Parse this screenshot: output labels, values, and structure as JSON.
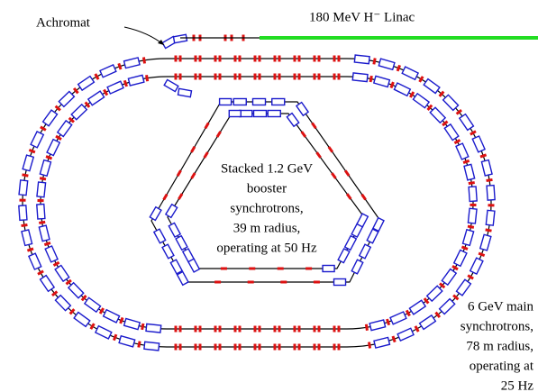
{
  "labels": {
    "linac": "180 MeV H⁻ Linac",
    "achromat": "Achromat",
    "booster": [
      "Stacked 1.2 GeV",
      "booster",
      "synchrotrons,",
      "39 m radius,",
      "operating at 50 Hz"
    ],
    "main": [
      "6 GeV main",
      "synchrotrons,",
      "78 m radius,",
      "operating at",
      "25 Hz"
    ]
  }
}
